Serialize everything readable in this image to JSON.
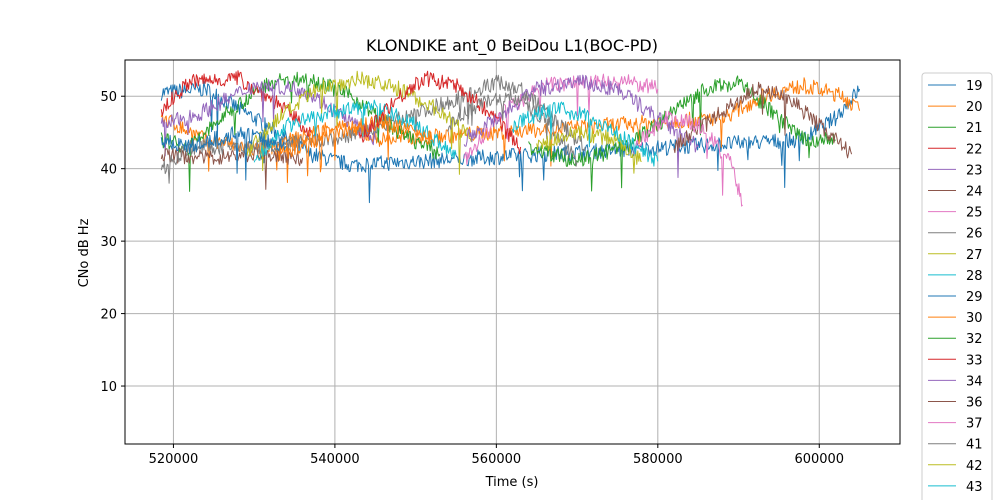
{
  "chart_data": {
    "type": "line",
    "title": "KLONDIKE ant_0 BeiDou L1(BOC-PD)",
    "xlabel": "Time (s)",
    "ylabel": "CNo dB Hz",
    "xlim": [
      514000,
      610000
    ],
    "ylim": [
      2,
      55
    ],
    "xticks": [
      520000,
      540000,
      560000,
      580000,
      600000
    ],
    "yticks": [
      10,
      20,
      30,
      40,
      50
    ],
    "grid": true,
    "legend_position": "right",
    "series": [
      {
        "name": "19",
        "color": "#1f77b4",
        "points": [
          [
            518500,
            50.5
          ],
          [
            524000,
            51.0
          ],
          [
            530000,
            47.0
          ],
          [
            537000,
            42.0
          ],
          [
            542000,
            40.5
          ],
          [
            598000,
            44.0
          ],
          [
            602000,
            47.0
          ],
          [
            605000,
            51.0
          ]
        ]
      },
      {
        "name": "20",
        "color": "#ff7f0e",
        "points": [
          [
            518500,
            47.0
          ],
          [
            524000,
            44.0
          ],
          [
            531000,
            42.5
          ],
          [
            540000,
            46.0
          ],
          [
            546000,
            44.0
          ],
          [
            588000,
            47.0
          ],
          [
            593000,
            50.0
          ],
          [
            598000,
            51.5
          ],
          [
            603000,
            50.0
          ],
          [
            605000,
            48.0
          ]
        ]
      },
      {
        "name": "21",
        "color": "#2ca02c",
        "points": [
          [
            518500,
            44.0
          ],
          [
            522000,
            43.0
          ],
          [
            527000,
            48.0
          ],
          [
            532000,
            52.0
          ],
          [
            537000,
            52.5
          ],
          [
            542000,
            50.0
          ],
          [
            548000,
            45.0
          ],
          [
            553000,
            42.0
          ]
        ]
      },
      {
        "name": "22",
        "color": "#d62728",
        "points": [
          [
            518500,
            48.0
          ],
          [
            522000,
            52.0
          ],
          [
            528000,
            52.5
          ],
          [
            533000,
            49.0
          ],
          [
            537000,
            45.0
          ]
        ]
      },
      {
        "name": "23",
        "color": "#9467bd",
        "points": [
          [
            518500,
            46.0
          ],
          [
            523000,
            47.5
          ],
          [
            530000,
            51.5
          ],
          [
            536000,
            51.0
          ],
          [
            540000,
            48.0
          ],
          [
            545000,
            44.0
          ]
        ]
      },
      {
        "name": "24",
        "color": "#8c564b",
        "points": [
          [
            518500,
            42.0
          ],
          [
            524000,
            41.5
          ],
          [
            530000,
            42.0
          ],
          [
            536000,
            41.5
          ]
        ]
      },
      {
        "name": "25",
        "color": "#e377c2",
        "points": [
          [
            556000,
            41.0
          ],
          [
            561000,
            48.0
          ],
          [
            566000,
            51.5
          ],
          [
            571000,
            52.0
          ],
          [
            576000,
            52.0
          ],
          [
            580000,
            51.0
          ]
        ]
      },
      {
        "name": "26",
        "color": "#7f7f7f",
        "points": [
          [
            518500,
            40.0
          ],
          [
            522000,
            43.0
          ],
          [
            530000,
            43.0
          ],
          [
            540000,
            44.0
          ],
          [
            546000,
            46.0
          ],
          [
            551000,
            48.0
          ],
          [
            556000,
            50.0
          ],
          [
            560000,
            52.0
          ],
          [
            563000,
            51.0
          ],
          [
            567000,
            47.0
          ],
          [
            571000,
            43.0
          ]
        ]
      },
      {
        "name": "27",
        "color": "#bcbd22",
        "points": [
          [
            529000,
            42.0
          ],
          [
            533000,
            47.0
          ],
          [
            538000,
            51.0
          ],
          [
            543000,
            52.5
          ],
          [
            548000,
            51.0
          ],
          [
            553000,
            48.0
          ],
          [
            557000,
            44.0
          ]
        ]
      },
      {
        "name": "28",
        "color": "#17becf",
        "points": [
          [
            530000,
            41.0
          ],
          [
            534000,
            46.0
          ],
          [
            540000,
            48.0
          ],
          [
            545000,
            48.5
          ],
          [
            550000,
            46.0
          ],
          [
            555000,
            42.0
          ]
        ]
      },
      {
        "name": "29",
        "color": "#1f77b4",
        "points": [
          [
            518500,
            44.0
          ],
          [
            522000,
            43.0
          ],
          [
            528000,
            45.0
          ],
          [
            534000,
            43.0
          ]
        ]
      },
      {
        "name": "30",
        "color": "#ff7f0e",
        "points": [
          [
            533000,
            42.0
          ],
          [
            540000,
            45.0
          ],
          [
            546000,
            46.5
          ],
          [
            552000,
            44.0
          ]
        ]
      },
      {
        "name": "32",
        "color": "#2ca02c",
        "points": [
          [
            564000,
            43.0
          ],
          [
            570000,
            41.0
          ],
          [
            576000,
            43.0
          ],
          [
            581000,
            47.0
          ],
          [
            586000,
            51.0
          ],
          [
            590000,
            52.0
          ],
          [
            594000,
            48.0
          ],
          [
            598000,
            44.0
          ],
          [
            602000,
            44.0
          ]
        ]
      },
      {
        "name": "33",
        "color": "#d62728",
        "points": [
          [
            543000,
            44.0
          ],
          [
            547000,
            49.0
          ],
          [
            551000,
            52.5
          ],
          [
            555000,
            51.5
          ],
          [
            559000,
            48.0
          ],
          [
            563000,
            43.0
          ]
        ]
      },
      {
        "name": "34",
        "color": "#9467bd",
        "points": [
          [
            556000,
            44.0
          ],
          [
            560000,
            47.0
          ],
          [
            565000,
            51.0
          ],
          [
            570000,
            52.0
          ],
          [
            575000,
            51.0
          ],
          [
            580000,
            47.0
          ],
          [
            585000,
            43.0
          ]
        ]
      },
      {
        "name": "36",
        "color": "#8c564b",
        "points": [
          [
            582000,
            43.0
          ],
          [
            587000,
            47.0
          ],
          [
            592000,
            51.0
          ],
          [
            596000,
            50.0
          ],
          [
            600000,
            46.0
          ],
          [
            604000,
            42.0
          ]
        ]
      },
      {
        "name": "37",
        "color": "#e377c2",
        "points": [
          [
            577000,
            43.0
          ],
          [
            581000,
            47.0
          ],
          [
            585000,
            46.0
          ],
          [
            589000,
            41.0
          ],
          [
            590500,
            35.0
          ]
        ]
      },
      {
        "name": "41",
        "color": "#7f7f7f",
        "points": [
          [
            554000,
            46.0
          ],
          [
            558000,
            49.0
          ],
          [
            562000,
            50.0
          ],
          [
            566000,
            47.0
          ],
          [
            570000,
            41.0
          ]
        ]
      },
      {
        "name": "42",
        "color": "#bcbd22",
        "points": [
          [
            565000,
            43.0
          ],
          [
            570000,
            45.0
          ],
          [
            575000,
            44.0
          ],
          [
            578000,
            41.0
          ]
        ]
      },
      {
        "name": "43",
        "color": "#17becf",
        "points": [
          [
            562000,
            46.0
          ],
          [
            567000,
            48.5
          ],
          [
            572000,
            47.0
          ],
          [
            576000,
            44.0
          ],
          [
            580000,
            41.0
          ]
        ]
      }
    ]
  }
}
